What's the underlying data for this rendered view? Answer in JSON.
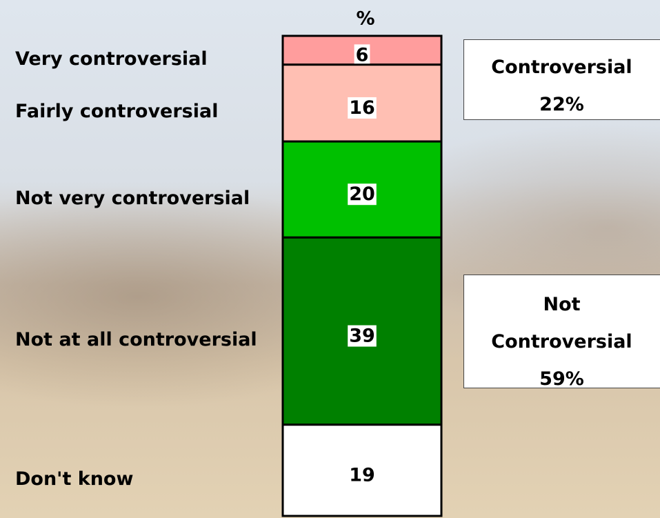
{
  "chart_data": {
    "type": "stacked_bar",
    "title": "%",
    "ylim": [
      0,
      100
    ],
    "series": [
      {
        "name": "Very controversial",
        "color": "#ff9d9d",
        "values": [
          6
        ]
      },
      {
        "name": "Fairly controversial",
        "color": "#ffbfb3",
        "values": [
          16
        ]
      },
      {
        "name": "Not very controversial",
        "color": "#00c000",
        "values": [
          20
        ]
      },
      {
        "name": "Not at all controversial",
        "color": "#008000",
        "values": [
          39
        ]
      },
      {
        "name": "Don't know",
        "color": "#ffffff",
        "values": [
          19
        ]
      }
    ],
    "annotations": [
      {
        "lines": [
          "Controversial",
          "22%"
        ]
      },
      {
        "lines": [
          "Not",
          "Controversial",
          "59%"
        ]
      }
    ]
  }
}
